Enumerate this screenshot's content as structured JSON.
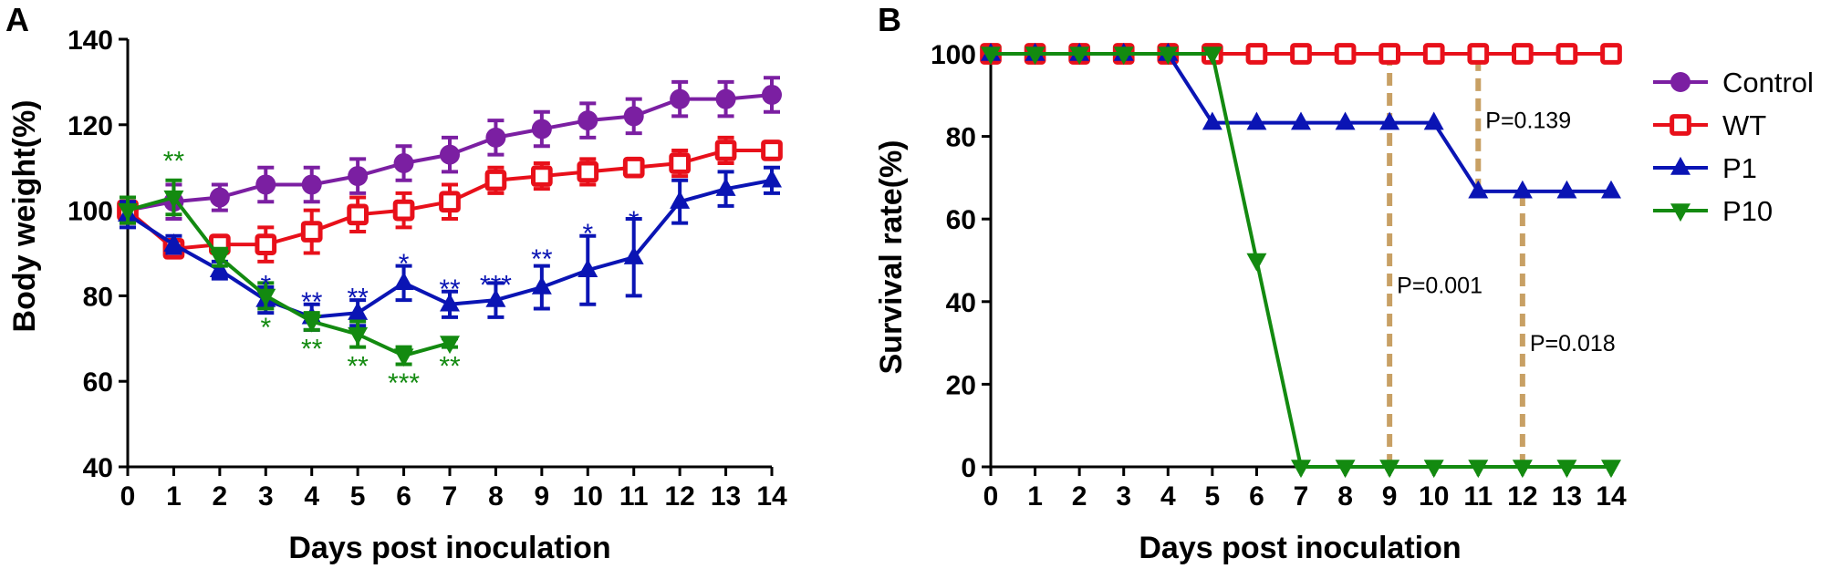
{
  "chart_data": [
    {
      "panel": "A",
      "type": "line",
      "xlabel": "Days post inoculation",
      "ylabel": "Body weight(%)",
      "xlim": [
        0,
        14
      ],
      "ylim": [
        40,
        140
      ],
      "x_ticks": [
        "0",
        "1",
        "2",
        "3",
        "4",
        "5",
        "6",
        "7",
        "8",
        "9",
        "10",
        "11",
        "12",
        "13",
        "14"
      ],
      "y_ticks": [
        "40",
        "60",
        "80",
        "100",
        "120",
        "140"
      ],
      "series": [
        {
          "name": "Control",
          "color": "#7b1fa2",
          "marker": "circle",
          "x": [
            0,
            1,
            2,
            3,
            4,
            5,
            6,
            7,
            8,
            9,
            10,
            11,
            12,
            13,
            14
          ],
          "values": [
            100,
            102,
            103,
            106,
            106,
            108,
            111,
            113,
            117,
            119,
            121,
            122,
            126,
            126,
            127
          ],
          "err": [
            3,
            4,
            3,
            4,
            4,
            4,
            4,
            4,
            4,
            4,
            4,
            4,
            4,
            4,
            4
          ]
        },
        {
          "name": "WT",
          "color": "#e8101a",
          "marker": "open-square",
          "x": [
            0,
            1,
            2,
            3,
            4,
            5,
            6,
            7,
            8,
            9,
            10,
            11,
            12,
            13,
            14
          ],
          "values": [
            100,
            91,
            92,
            92,
            95,
            99,
            100,
            102,
            107,
            108,
            109,
            110,
            111,
            114,
            114
          ],
          "err": [
            3,
            2,
            2,
            4,
            5,
            4,
            4,
            4,
            3,
            3,
            3,
            2,
            3,
            3,
            2
          ]
        },
        {
          "name": "P1",
          "color": "#0a14b4",
          "marker": "triangle-up",
          "x": [
            0,
            1,
            2,
            3,
            4,
            5,
            6,
            7,
            8,
            9,
            10,
            11,
            12,
            13,
            14
          ],
          "values": [
            99,
            92,
            86,
            79,
            75,
            76,
            83,
            78,
            79,
            82,
            86,
            89,
            102,
            105,
            107
          ],
          "err": [
            3,
            2,
            2,
            3,
            3,
            3,
            4,
            3,
            4,
            5,
            8,
            9,
            5,
            4,
            3
          ]
        },
        {
          "name": "P10",
          "color": "#138a10",
          "marker": "triangle-down",
          "x": [
            0,
            1,
            2,
            3,
            4,
            5,
            6,
            7
          ],
          "values": [
            100,
            103,
            89,
            80,
            74,
            71,
            66,
            69
          ],
          "err": [
            3,
            4,
            2,
            3,
            2,
            3,
            2,
            1
          ]
        }
      ],
      "annotations": [
        {
          "text": "**",
          "x": 1,
          "y": 112,
          "series": "P10"
        },
        {
          "text": "*",
          "x": 3,
          "y": 83,
          "series": "P1"
        },
        {
          "text": "**",
          "x": 4,
          "y": 79,
          "series": "P1"
        },
        {
          "text": "**",
          "x": 5,
          "y": 80,
          "series": "P1"
        },
        {
          "text": "*",
          "x": 6,
          "y": 88,
          "series": "P1"
        },
        {
          "text": "**",
          "x": 7,
          "y": 82,
          "series": "P1"
        },
        {
          "text": "***",
          "x": 8,
          "y": 83,
          "series": "P1"
        },
        {
          "text": "**",
          "x": 9,
          "y": 89,
          "series": "P1"
        },
        {
          "text": "*",
          "x": 10,
          "y": 95,
          "series": "P1"
        },
        {
          "text": "*",
          "x": 11,
          "y": 98,
          "series": "P1"
        },
        {
          "text": "*",
          "x": 3,
          "y": 73,
          "series": "P10"
        },
        {
          "text": "**",
          "x": 4,
          "y": 68,
          "series": "P10"
        },
        {
          "text": "**",
          "x": 5,
          "y": 64,
          "series": "P10"
        },
        {
          "text": "***",
          "x": 6,
          "y": 60,
          "series": "P10"
        },
        {
          "text": "**",
          "x": 7,
          "y": 64,
          "series": "P10"
        }
      ]
    },
    {
      "panel": "B",
      "type": "line",
      "xlabel": "Days post inoculation",
      "ylabel": "Survival rate(%)",
      "xlim": [
        0,
        14
      ],
      "ylim": [
        0,
        100
      ],
      "x_ticks": [
        "0",
        "1",
        "2",
        "3",
        "4",
        "5",
        "6",
        "7",
        "8",
        "9",
        "10",
        "11",
        "12",
        "13",
        "14"
      ],
      "y_ticks": [
        "0",
        "20",
        "40",
        "60",
        "80",
        "100"
      ],
      "series": [
        {
          "name": "Control",
          "color": "#7b1fa2",
          "marker": "circle",
          "x": [
            0,
            1,
            2,
            3,
            4,
            5,
            6,
            7,
            8,
            9,
            10,
            11,
            12,
            13,
            14
          ],
          "values": [
            100,
            100,
            100,
            100,
            100,
            100,
            100,
            100,
            100,
            100,
            100,
            100,
            100,
            100,
            100
          ]
        },
        {
          "name": "WT",
          "color": "#e8101a",
          "marker": "open-square",
          "x": [
            0,
            1,
            2,
            3,
            4,
            5,
            6,
            7,
            8,
            9,
            10,
            11,
            12,
            13,
            14
          ],
          "values": [
            100,
            100,
            100,
            100,
            100,
            100,
            100,
            100,
            100,
            100,
            100,
            100,
            100,
            100,
            100
          ]
        },
        {
          "name": "P1",
          "color": "#0a14b4",
          "marker": "triangle-up",
          "x": [
            0,
            1,
            2,
            3,
            4,
            5,
            6,
            7,
            8,
            9,
            10,
            11,
            12,
            13,
            14
          ],
          "values": [
            100,
            100,
            100,
            100,
            100,
            83.3,
            83.3,
            83.3,
            83.3,
            83.3,
            83.3,
            66.7,
            66.7,
            66.7,
            66.7
          ]
        },
        {
          "name": "P10",
          "color": "#138a10",
          "marker": "triangle-down",
          "x": [
            0,
            1,
            2,
            3,
            4,
            5,
            6,
            7,
            8,
            9,
            10,
            11,
            12,
            13,
            14
          ],
          "values": [
            100,
            100,
            100,
            100,
            100,
            100,
            50,
            0,
            0,
            0,
            0,
            0,
            0,
            0,
            0
          ]
        }
      ],
      "annotations": [
        {
          "text": "P=0.139",
          "x": 11,
          "y0": 66.7,
          "y1": 100,
          "label_y": 84
        },
        {
          "text": "P=0.001",
          "x": 9,
          "y0": 0,
          "y1": 100,
          "label_y": 44
        },
        {
          "text": "P=0.018",
          "x": 12,
          "y0": 0,
          "y1": 66.7,
          "label_y": 30
        }
      ],
      "annotation_color": "#c8a064",
      "legend_position": "right"
    }
  ]
}
